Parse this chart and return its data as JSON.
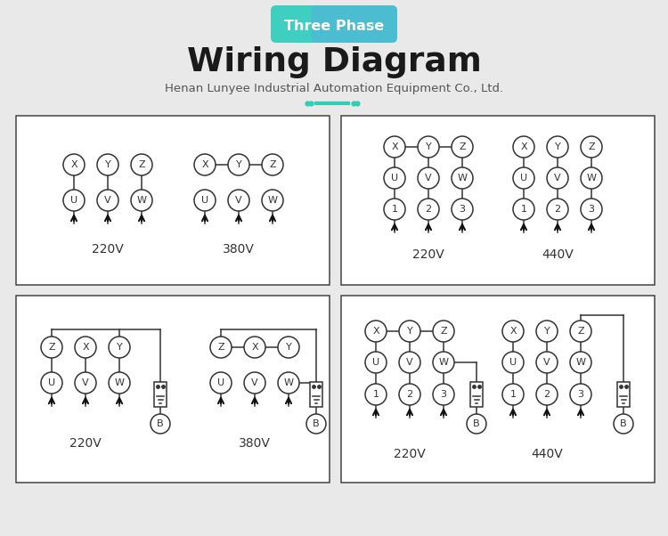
{
  "bg_color": "#e9e9e9",
  "title_badge_text": "Three Phase",
  "badge_color": "#3ecfc0",
  "title_text": "Wiring Diagram",
  "subtitle_text": "Henan Lunyee Industrial Automation Equipment Co., Ltd.",
  "box_bg": "#ffffff",
  "box_edge": "#444444",
  "circle_color": "#333333",
  "line_color": "#333333",
  "arrow_color": "#111111",
  "text_color": "#333333",
  "teal_color": "#2ecfb5"
}
